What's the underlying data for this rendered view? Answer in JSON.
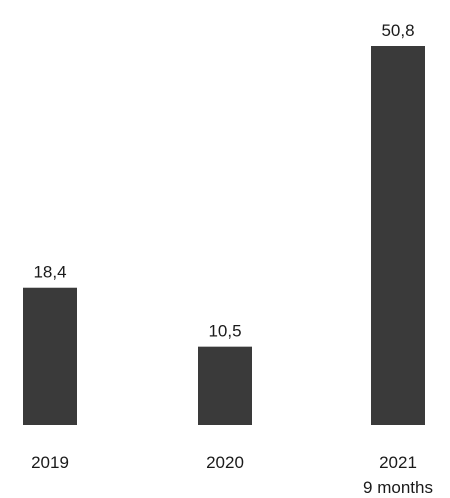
{
  "chart_data": {
    "type": "bar",
    "categories": [
      "2019",
      "2020",
      "2021"
    ],
    "category_sublabels": [
      "",
      "",
      "9 months"
    ],
    "values": [
      18.4,
      10.5,
      50.8
    ],
    "value_labels": [
      "18,4",
      "10,5",
      "50,8"
    ],
    "title": "",
    "xlabel": "",
    "ylabel": "",
    "ylim": [
      0,
      50.8
    ],
    "grid": false,
    "legend": "none",
    "bar_color": "#3a3a3a"
  }
}
